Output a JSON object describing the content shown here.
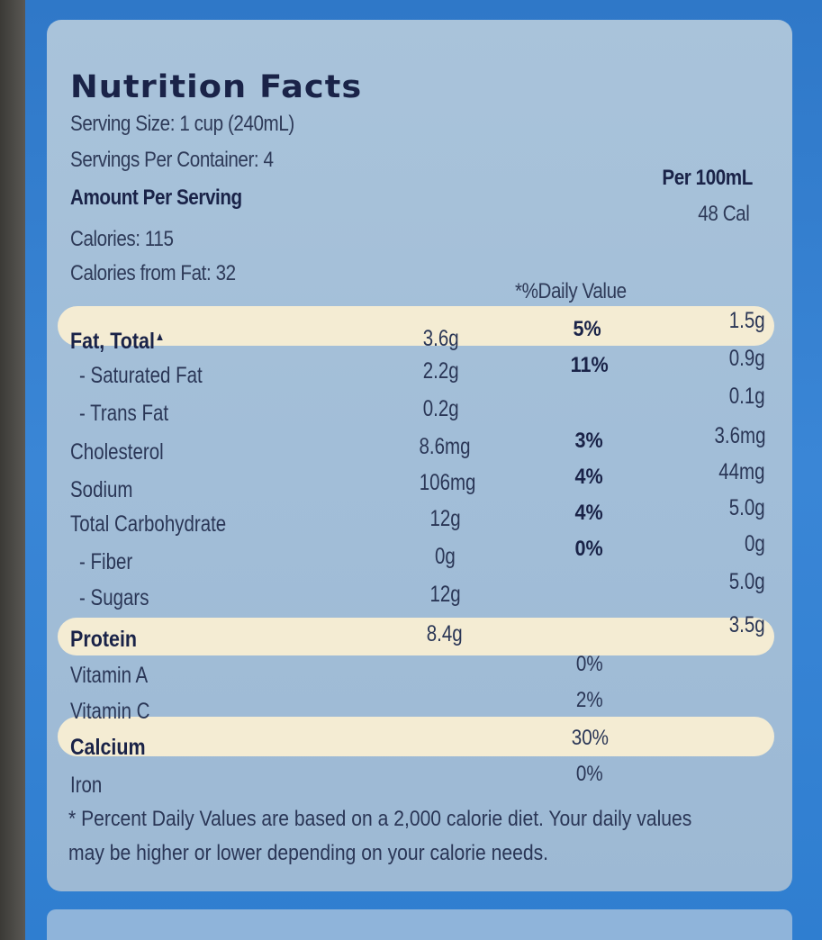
{
  "title": "Nutrition Facts",
  "serving_size": "Serving Size: 1 cup (240mL)",
  "servings_per_container": "Servings Per Container: 4",
  "amount_per_serving": "Amount Per Serving",
  "calories": "Calories: 115",
  "calories_from_fat": "Calories from Fat: 32",
  "per_100ml_header": "Per 100mL",
  "per_100ml_calories": "48 Cal",
  "daily_value_header": "*%Daily Value",
  "rows": [
    {
      "name": "Fat, Total",
      "amount": "3.6g",
      "dv": "5%",
      "per100": "1.5g"
    },
    {
      "name": "- Saturated Fat",
      "amount": "2.2g",
      "dv": "11%",
      "per100": "0.9g"
    },
    {
      "name": "- Trans Fat",
      "amount": "0.2g",
      "dv": "",
      "per100": "0.1g"
    },
    {
      "name": "Cholesterol",
      "amount": "8.6mg",
      "dv": "3%",
      "per100": "3.6mg"
    },
    {
      "name": "Sodium",
      "amount": "106mg",
      "dv": "4%",
      "per100": "44mg"
    },
    {
      "name": "Total Carbohydrate",
      "amount": "12g",
      "dv": "4%",
      "per100": "5.0g"
    },
    {
      "name": "- Fiber",
      "amount": "0g",
      "dv": "0%",
      "per100": "0g"
    },
    {
      "name": "- Sugars",
      "amount": "12g",
      "dv": "",
      "per100": "5.0g"
    },
    {
      "name": "Protein",
      "amount": "8.4g",
      "dv": "",
      "per100": "3.5g"
    }
  ],
  "vitamins": [
    {
      "name": "Vitamin A",
      "dv": "0%"
    },
    {
      "name": "Vitamin C",
      "dv": "2%"
    },
    {
      "name": "Calcium",
      "dv": "30%"
    },
    {
      "name": "Iron",
      "dv": "0%"
    }
  ],
  "footnote_line1": "* Percent Daily Values are based on a 2,000 calorie diet. Your daily values",
  "footnote_line2": "may be higher or lower depending on your calorie needs.",
  "colors": {
    "carton_blue": "#2f78c8",
    "panel": "#a9c3da",
    "highlight": "#f4ecd3",
    "text": "#1a2348"
  }
}
